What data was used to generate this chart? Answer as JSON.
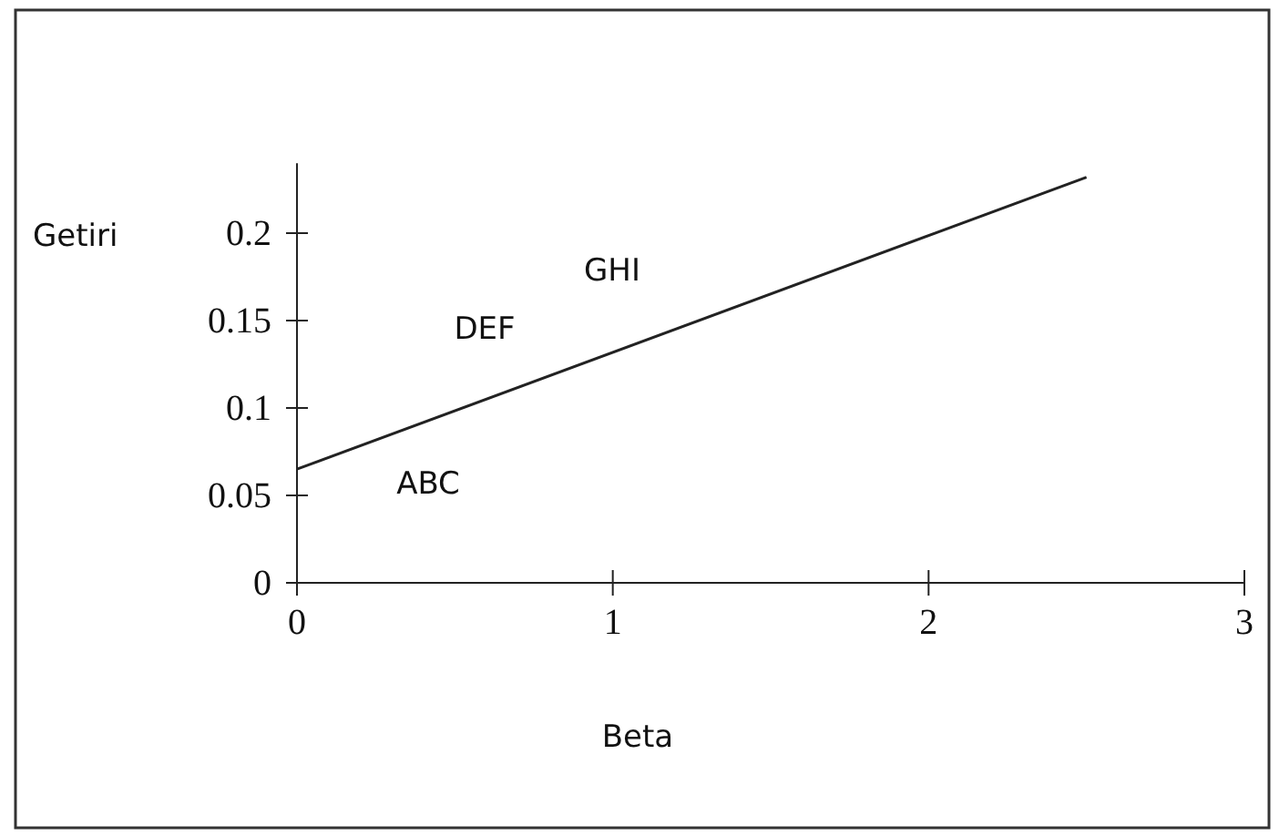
{
  "chart_data": {
    "type": "line",
    "xlabel": "Beta",
    "ylabel": "Getiri",
    "series": [
      {
        "color": "#222222",
        "x": [
          0,
          2.5
        ],
        "values": [
          0.065,
          0.232
        ]
      }
    ],
    "xlim": [
      0,
      3
    ],
    "xticks": [
      0,
      1,
      2,
      3
    ],
    "ylim": [
      0,
      0.24
    ],
    "yticks": [
      0,
      0.05,
      0.1,
      0.15,
      0.2
    ],
    "annotations": [
      "ABC",
      "DEF",
      "GHI"
    ],
    "grid": false,
    "marker": "none",
    "line_style": "solid"
  }
}
